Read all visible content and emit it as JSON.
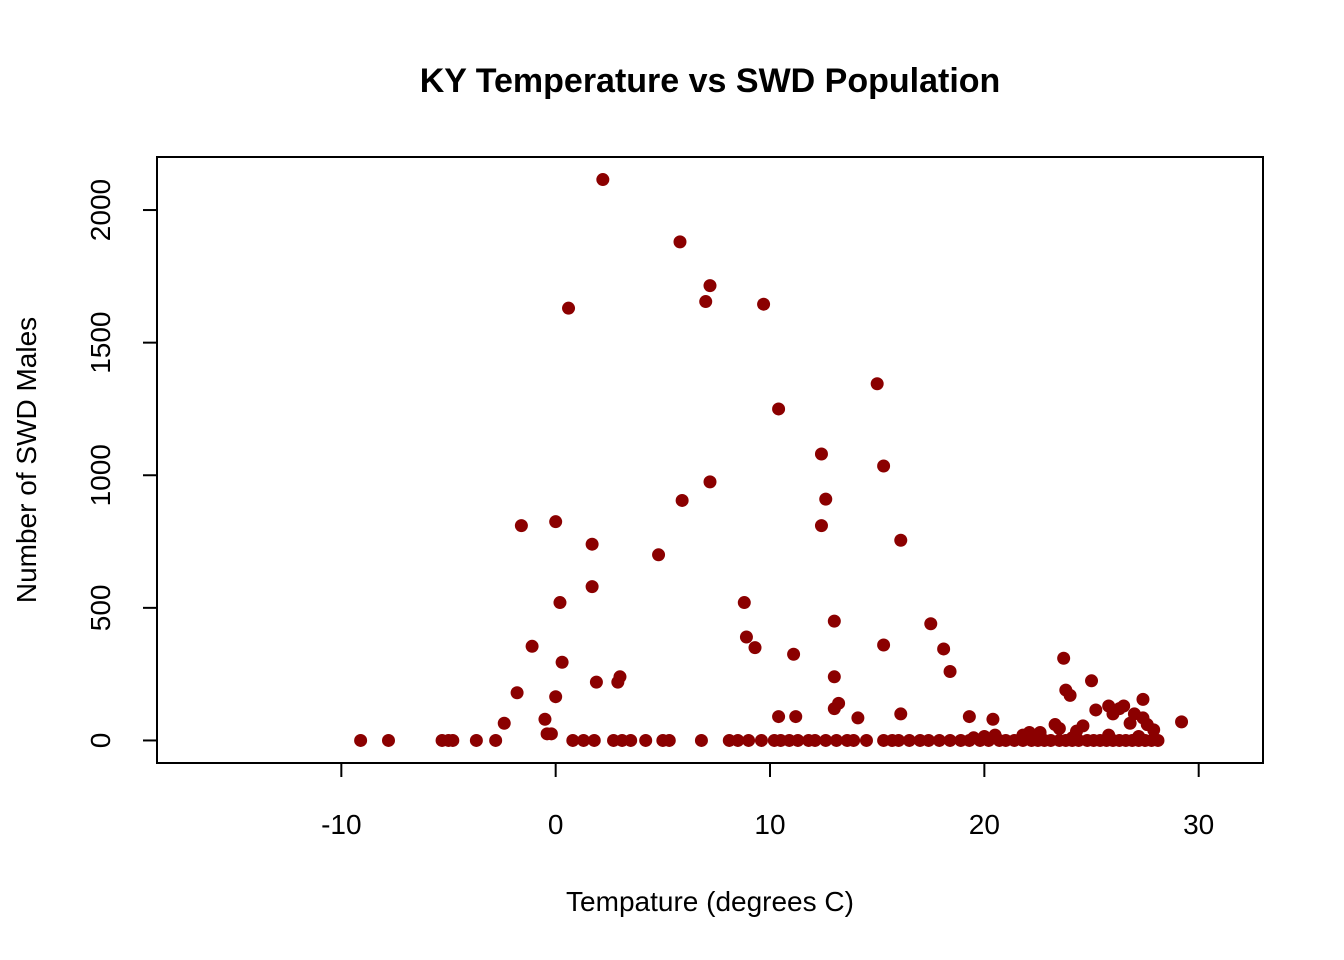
{
  "chart_data": {
    "type": "scatter",
    "title": "KY Temperature vs SWD Population",
    "xlabel": "Tempature (degrees C)",
    "ylabel": "Number of SWD Males",
    "xlim": [
      -18.6,
      33
    ],
    "ylim": [
      -85,
      2200
    ],
    "x_ticks": [
      -10,
      0,
      10,
      20,
      30
    ],
    "x_tick_labels": [
      "-10",
      "0",
      "10",
      "20",
      "30"
    ],
    "y_ticks": [
      0,
      500,
      1000,
      1500,
      2000
    ],
    "y_tick_labels": [
      "0",
      "500",
      "1000",
      "1500",
      "2000"
    ],
    "grid": false,
    "legend": "none",
    "marker_color": "#8B0000",
    "x": [
      2.2,
      5.8,
      7.2,
      7.0,
      9.7,
      0.6,
      15.0,
      10.4,
      12.4,
      15.3,
      7.2,
      12.6,
      5.9,
      -1.6,
      0.0,
      12.4,
      1.7,
      16.1,
      4.8,
      1.7,
      8.8,
      0.2,
      13.0,
      17.5,
      15.3,
      8.9,
      9.3,
      18.1,
      -1.1,
      11.1,
      0.3,
      18.4,
      13.0,
      3.0,
      2.9,
      1.9,
      -1.8,
      0.0,
      13.2,
      13.0,
      16.1,
      10.4,
      11.2,
      14.1,
      -0.5,
      -2.4,
      23.7,
      25.0,
      23.8,
      24.0,
      27.4,
      26.5,
      26.3,
      25.8,
      29.2,
      19.3,
      20.4,
      23.3,
      24.6,
      25.2,
      26.0,
      27.0,
      27.4,
      27.6,
      22.1,
      21.8,
      23.5,
      24.3,
      26.8,
      27.9,
      20.5,
      22.6,
      -0.4,
      -0.2,
      20.0,
      22.0,
      24.1,
      25.8,
      27.2,
      19.5,
      -9.1,
      -7.8,
      -5.3,
      -5.0,
      -4.8,
      -3.7,
      -2.8,
      0.8,
      1.3,
      1.8,
      2.7,
      3.1,
      3.5,
      4.2,
      5.0,
      5.3,
      6.8,
      8.1,
      8.5,
      9.0,
      9.6,
      10.2,
      10.5,
      10.9,
      11.3,
      11.8,
      12.1,
      12.6,
      13.1,
      13.6,
      13.9,
      14.5,
      15.3,
      15.7,
      16.0,
      16.5,
      17.0,
      17.4,
      17.9,
      18.4,
      18.9,
      19.3,
      19.8,
      20.2,
      20.7,
      21.0,
      21.4,
      21.8,
      22.2,
      22.5,
      22.8,
      23.1,
      23.5,
      23.8,
      24.1,
      24.4,
      24.8,
      25.1,
      25.4,
      25.7,
      26.0,
      26.3,
      26.6,
      26.9,
      27.2,
      27.5,
      27.8,
      28.1
    ],
    "y": [
      2115,
      1880,
      1715,
      1655,
      1645,
      1630,
      1345,
      1250,
      1080,
      1035,
      975,
      910,
      905,
      810,
      825,
      810,
      740,
      755,
      700,
      580,
      520,
      520,
      450,
      440,
      360,
      390,
      350,
      345,
      355,
      325,
      295,
      260,
      240,
      240,
      220,
      220,
      180,
      165,
      140,
      120,
      100,
      90,
      90,
      85,
      80,
      65,
      310,
      225,
      190,
      170,
      155,
      130,
      120,
      130,
      70,
      90,
      80,
      60,
      55,
      115,
      100,
      100,
      85,
      60,
      30,
      20,
      45,
      35,
      65,
      40,
      20,
      30,
      25,
      25,
      15,
      10,
      10,
      20,
      15,
      10,
      0,
      0,
      0,
      0,
      0,
      0,
      0,
      0,
      0,
      0,
      0,
      0,
      0,
      0,
      0,
      0,
      0,
      0,
      0,
      0,
      0,
      0,
      0,
      0,
      0,
      0,
      0,
      0,
      0,
      0,
      0,
      0,
      0,
      0,
      0,
      0,
      0,
      0,
      0,
      0,
      0,
      0,
      0,
      0,
      0,
      0,
      0,
      0,
      0,
      0,
      0,
      0,
      0,
      0,
      0,
      0,
      0,
      0,
      0,
      0,
      0,
      0,
      0,
      0,
      0,
      0,
      0,
      0
    ]
  }
}
